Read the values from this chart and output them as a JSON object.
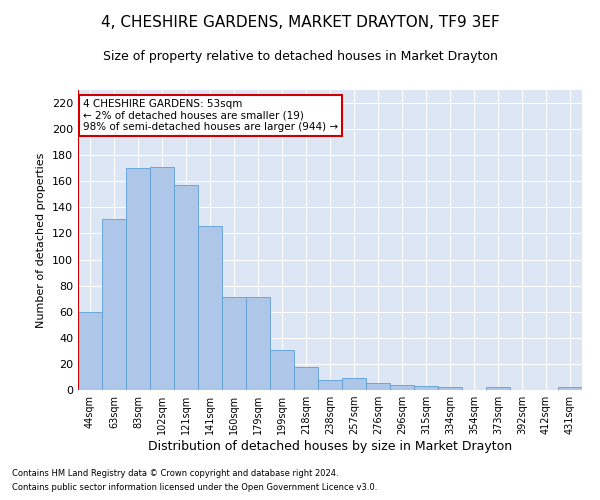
{
  "title": "4, CHESHIRE GARDENS, MARKET DRAYTON, TF9 3EF",
  "subtitle": "Size of property relative to detached houses in Market Drayton",
  "xlabel": "Distribution of detached houses by size in Market Drayton",
  "ylabel": "Number of detached properties",
  "categories": [
    "44sqm",
    "63sqm",
    "83sqm",
    "102sqm",
    "121sqm",
    "141sqm",
    "160sqm",
    "179sqm",
    "199sqm",
    "218sqm",
    "238sqm",
    "257sqm",
    "276sqm",
    "296sqm",
    "315sqm",
    "334sqm",
    "354sqm",
    "373sqm",
    "392sqm",
    "412sqm",
    "431sqm"
  ],
  "values": [
    60,
    131,
    170,
    171,
    157,
    126,
    71,
    71,
    31,
    18,
    8,
    9,
    5,
    4,
    3,
    2,
    0,
    2,
    0,
    0,
    2
  ],
  "bar_color": "#aec6e8",
  "bar_edge_color": "#5a9fd4",
  "highlight_color": "#cc0000",
  "annotation_title": "4 CHESHIRE GARDENS: 53sqm",
  "annotation_line1": "← 2% of detached houses are smaller (19)",
  "annotation_line2": "98% of semi-detached houses are larger (944) →",
  "annotation_box_color": "#ffffff",
  "annotation_box_edge_color": "#cc0000",
  "ylim": [
    0,
    230
  ],
  "yticks": [
    0,
    20,
    40,
    60,
    80,
    100,
    120,
    140,
    160,
    180,
    200,
    220
  ],
  "plot_bg_color": "#dce6f5",
  "footer_line1": "Contains HM Land Registry data © Crown copyright and database right 2024.",
  "footer_line2": "Contains public sector information licensed under the Open Government Licence v3.0.",
  "title_fontsize": 11,
  "subtitle_fontsize": 9,
  "xlabel_fontsize": 9,
  "ylabel_fontsize": 8
}
